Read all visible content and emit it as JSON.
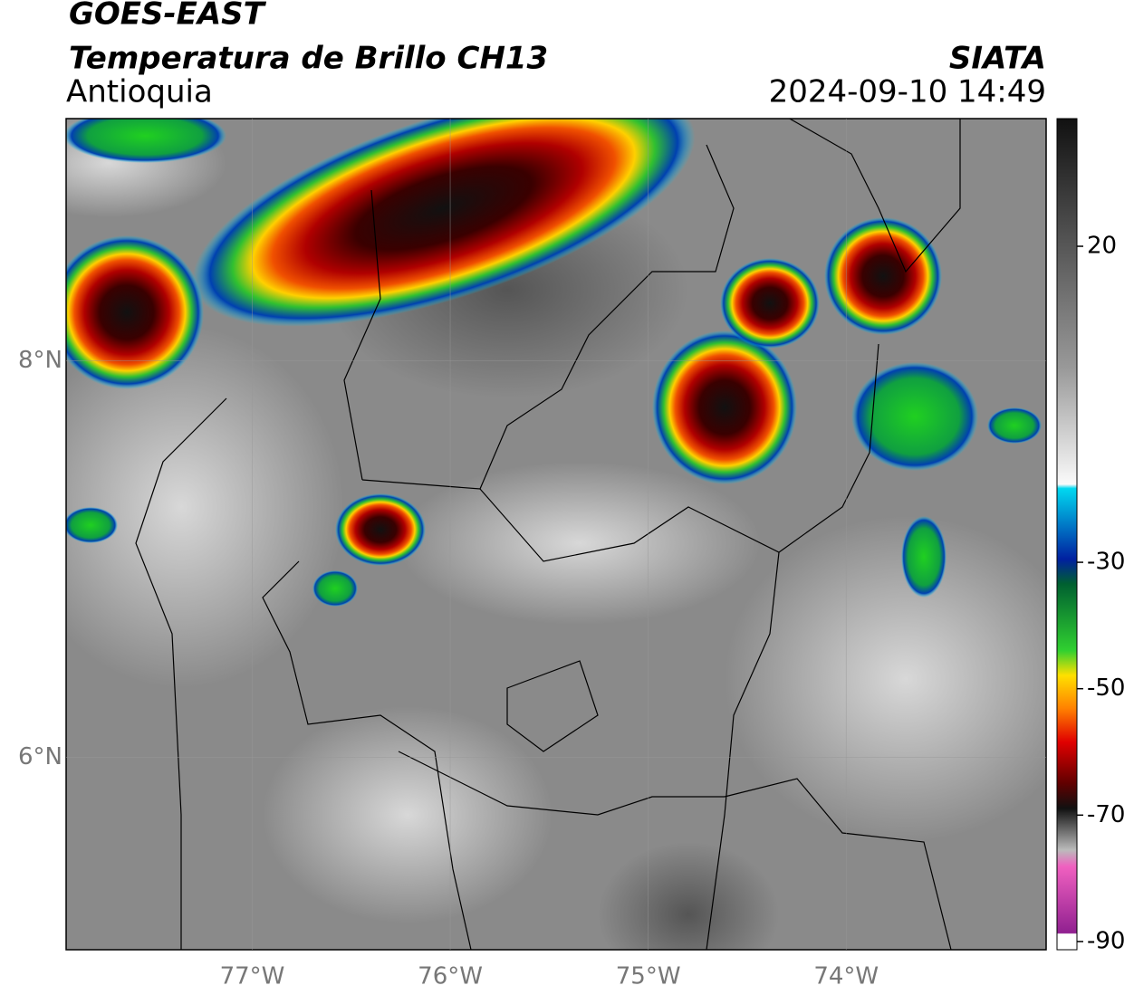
{
  "header": {
    "title": "GOES-EAST",
    "subtitle": "Temperatura de Brillo CH13",
    "region": "Antioquia",
    "source": "SIATA",
    "datetime": "2024-09-10 14:49"
  },
  "map": {
    "xlim": [
      -77.94,
      -72.99
    ],
    "ylim": [
      5.03,
      9.22
    ],
    "xticks": [
      {
        "value": -77,
        "label": "77°W"
      },
      {
        "value": -76,
        "label": "76°W"
      },
      {
        "value": -75,
        "label": "75°W"
      },
      {
        "value": -74,
        "label": "74°W"
      }
    ],
    "yticks": [
      {
        "value": 6,
        "label": "6°N"
      },
      {
        "value": 8,
        "label": "8°N"
      }
    ]
  },
  "colorbar": {
    "lim": [
      -91.3,
      40.2
    ],
    "ticks": [
      20,
      -30,
      -50,
      -70,
      -90
    ]
  }
}
